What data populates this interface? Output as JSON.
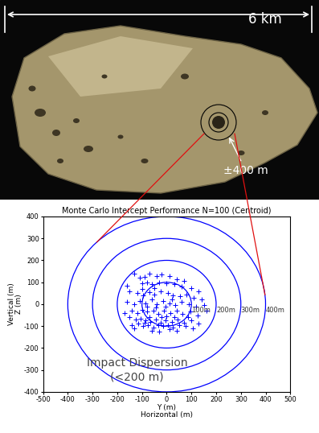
{
  "image": {
    "width_label": "6 km",
    "target_label": "±400 m"
  },
  "chart_data": {
    "type": "scatter",
    "title": "Monte Carlo Intercept Performance N=100 (Centroid)",
    "x_label": "Y (m)\nHorizontal (m)",
    "y_label": "Vertical (m)\nZ (m)",
    "x": [
      -130,
      -110,
      -90,
      -70,
      -40,
      -20,
      10,
      40,
      -100,
      -80,
      -60,
      -30,
      0,
      30,
      60,
      100,
      130,
      -150,
      -120,
      -95,
      -70,
      -50,
      -25,
      5,
      25,
      55,
      80,
      110,
      -160,
      -130,
      -110,
      -85,
      -60,
      -40,
      -15,
      10,
      35,
      60,
      90,
      120,
      150,
      -140,
      -120,
      -100,
      -80,
      -55,
      -35,
      -10,
      15,
      40,
      65,
      95,
      125,
      -150,
      -125,
      -105,
      -85,
      -65,
      -45,
      -25,
      -5,
      20,
      45,
      70,
      100,
      130,
      -140,
      -115,
      -95,
      -75,
      -55,
      -35,
      -15,
      5,
      25,
      50,
      75,
      105,
      -90,
      -70,
      -20,
      0,
      30,
      85,
      -45,
      -5,
      20,
      -160,
      140,
      -130,
      -60,
      40,
      -100,
      70,
      -50,
      -170,
      160,
      -30,
      10,
      -80
    ],
    "values": [
      140,
      120,
      125,
      140,
      130,
      135,
      130,
      115,
      95,
      100,
      90,
      100,
      95,
      90,
      80,
      75,
      60,
      60,
      50,
      40,
      55,
      45,
      60,
      50,
      40,
      35,
      45,
      30,
      10,
      0,
      15,
      5,
      20,
      0,
      15,
      5,
      -5,
      10,
      0,
      -10,
      -5,
      -30,
      -40,
      -25,
      -35,
      -30,
      -45,
      -30,
      -40,
      -30,
      -45,
      -35,
      -50,
      -60,
      -70,
      -65,
      -75,
      -80,
      -70,
      -85,
      -75,
      -80,
      -70,
      -85,
      -75,
      -90,
      -95,
      -90,
      -100,
      -95,
      -105,
      -95,
      -100,
      -95,
      -105,
      -95,
      -100,
      -110,
      -85,
      -60,
      -60,
      -55,
      -60,
      -60,
      -15,
      -10,
      20,
      85,
      20,
      -110,
      -120,
      -120,
      70,
      105,
      75,
      -40,
      -30,
      -125,
      -115,
      -10
    ],
    "color": "#0000ff",
    "marker": "+",
    "rings": [
      {
        "radius": 100,
        "label": "100m"
      },
      {
        "radius": 200,
        "label": "200m"
      },
      {
        "radius": 300,
        "label": "300m"
      },
      {
        "radius": 400,
        "label": "400m"
      }
    ],
    "annotation": "Impact Dispersion\n(<200 m)",
    "xlim": [
      -500,
      500
    ],
    "ylim": [
      -400,
      400
    ],
    "xticks": [
      -500,
      -400,
      -300,
      -200,
      -100,
      0,
      100,
      200,
      300,
      400,
      500
    ],
    "yticks": [
      -400,
      -300,
      -200,
      -100,
      0,
      100,
      200,
      300,
      400
    ]
  }
}
